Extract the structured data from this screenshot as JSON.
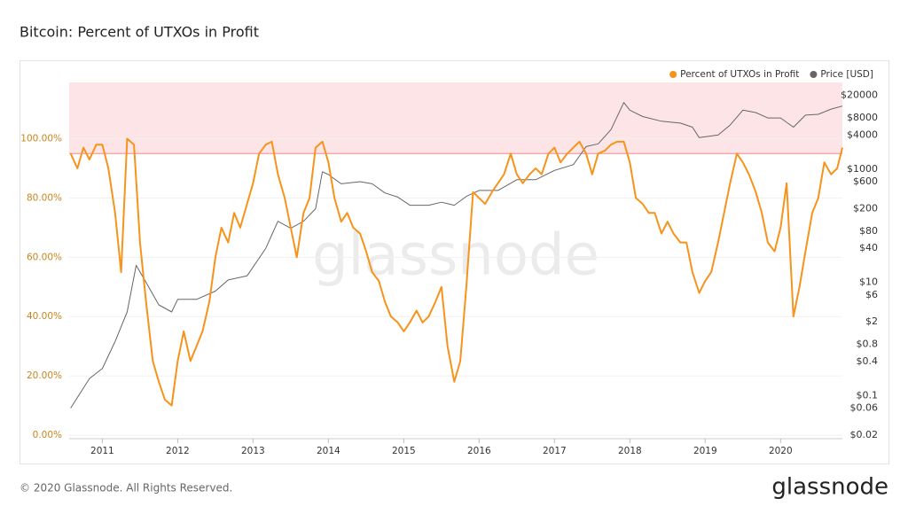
{
  "chart_data": {
    "type": "line",
    "title": "Bitcoin: Percent of UTXOs in Profit",
    "watermark": "glassnode",
    "footer": "© 2020 Glassnode. All Rights Reserved.",
    "brand": "glassnode",
    "xlim": [
      2010.56,
      2020.82
    ],
    "xticks": [
      2011,
      2012,
      2013,
      2014,
      2015,
      2016,
      2017,
      2018,
      2019,
      2020
    ],
    "ylim": [
      0,
      119
    ],
    "yticks": [
      {
        "value": 0,
        "label": "0.00%"
      },
      {
        "value": 20,
        "label": "20.00%"
      },
      {
        "value": 40,
        "label": "40.00%"
      },
      {
        "value": 60,
        "label": "60.00%"
      },
      {
        "value": 80,
        "label": "80.00%"
      },
      {
        "value": 100,
        "label": "100.00%"
      }
    ],
    "y2lim": [
      0.02,
      34000
    ],
    "y2log": true,
    "y2ticks": [
      {
        "value": 0.02,
        "label": "$0.02"
      },
      {
        "value": 0.06,
        "label": "$0.06"
      },
      {
        "value": 0.1,
        "label": "$0.1"
      },
      {
        "value": 0.4,
        "label": "$0.4"
      },
      {
        "value": 0.8,
        "label": "$0.8"
      },
      {
        "value": 2,
        "label": "$2"
      },
      {
        "value": 6,
        "label": "$6"
      },
      {
        "value": 10,
        "label": "$10"
      },
      {
        "value": 40,
        "label": "$40"
      },
      {
        "value": 80,
        "label": "$80"
      },
      {
        "value": 200,
        "label": "$200"
      },
      {
        "value": 600,
        "label": "$600"
      },
      {
        "value": 1000,
        "label": "$1000"
      },
      {
        "value": 4000,
        "label": "$4000"
      },
      {
        "value": 8000,
        "label": "$8000"
      },
      {
        "value": 20000,
        "label": "$20000"
      }
    ],
    "highlight": {
      "from": 95,
      "color": "#fde5e7",
      "line_color": "#f08a8a"
    },
    "grid": true,
    "legend": "top-right",
    "series": [
      {
        "name": "Percent of UTXOs in Profit",
        "color": "#f7931a",
        "axis": "y",
        "x": [
          2010.58,
          2010.67,
          2010.75,
          2010.83,
          2010.92,
          2011.0,
          2011.08,
          2011.17,
          2011.25,
          2011.33,
          2011.42,
          2011.5,
          2011.58,
          2011.67,
          2011.75,
          2011.83,
          2011.92,
          2012.0,
          2012.08,
          2012.17,
          2012.25,
          2012.33,
          2012.42,
          2012.5,
          2012.58,
          2012.67,
          2012.75,
          2012.83,
          2012.92,
          2013.0,
          2013.08,
          2013.17,
          2013.25,
          2013.33,
          2013.42,
          2013.5,
          2013.58,
          2013.67,
          2013.75,
          2013.83,
          2013.92,
          2014.0,
          2014.08,
          2014.17,
          2014.25,
          2014.33,
          2014.42,
          2014.5,
          2014.58,
          2014.67,
          2014.75,
          2014.83,
          2014.92,
          2015.0,
          2015.08,
          2015.17,
          2015.25,
          2015.33,
          2015.42,
          2015.5,
          2015.58,
          2015.67,
          2015.75,
          2015.83,
          2015.92,
          2016.0,
          2016.08,
          2016.17,
          2016.25,
          2016.33,
          2016.42,
          2016.5,
          2016.58,
          2016.67,
          2016.75,
          2016.83,
          2016.92,
          2017.0,
          2017.08,
          2017.17,
          2017.25,
          2017.33,
          2017.42,
          2017.5,
          2017.58,
          2017.67,
          2017.75,
          2017.83,
          2017.92,
          2018.0,
          2018.08,
          2018.17,
          2018.25,
          2018.33,
          2018.42,
          2018.5,
          2018.58,
          2018.67,
          2018.75,
          2018.83,
          2018.92,
          2019.0,
          2019.08,
          2019.17,
          2019.25,
          2019.33,
          2019.42,
          2019.5,
          2019.58,
          2019.67,
          2019.75,
          2019.83,
          2019.92,
          2020.0,
          2020.08,
          2020.17,
          2020.25,
          2020.33,
          2020.42,
          2020.5,
          2020.58,
          2020.67,
          2020.75,
          2020.82
        ],
        "values": [
          95,
          90,
          97,
          93,
          98,
          98,
          90,
          75,
          55,
          100,
          98,
          65,
          45,
          25,
          18,
          12,
          10,
          25,
          35,
          25,
          30,
          35,
          45,
          60,
          70,
          65,
          75,
          70,
          78,
          85,
          95,
          98,
          99,
          88,
          80,
          70,
          60,
          75,
          80,
          97,
          99,
          92,
          80,
          72,
          75,
          70,
          68,
          62,
          55,
          52,
          45,
          40,
          38,
          35,
          38,
          42,
          38,
          40,
          45,
          50,
          30,
          18,
          25,
          50,
          82,
          80,
          78,
          82,
          85,
          88,
          95,
          88,
          85,
          88,
          90,
          88,
          95,
          97,
          92,
          95,
          97,
          99,
          95,
          88,
          95,
          96,
          98,
          99,
          99,
          92,
          80,
          78,
          75,
          75,
          68,
          72,
          68,
          65,
          65,
          55,
          48,
          52,
          55,
          65,
          75,
          85,
          95,
          92,
          88,
          82,
          75,
          65,
          62,
          70,
          85,
          40,
          50,
          62,
          75,
          80,
          92,
          88,
          90,
          97
        ]
      },
      {
        "name": "Price [USD]",
        "color": "#666666",
        "axis": "y2",
        "x": [
          2010.58,
          2010.83,
          2011.0,
          2011.17,
          2011.33,
          2011.45,
          2011.58,
          2011.75,
          2011.92,
          2012.0,
          2012.25,
          2012.5,
          2012.67,
          2012.92,
          2013.17,
          2013.33,
          2013.5,
          2013.67,
          2013.83,
          2013.92,
          2014.0,
          2014.17,
          2014.42,
          2014.58,
          2014.75,
          2014.92,
          2015.08,
          2015.33,
          2015.5,
          2015.67,
          2015.83,
          2016.0,
          2016.25,
          2016.5,
          2016.75,
          2017.0,
          2017.25,
          2017.42,
          2017.58,
          2017.75,
          2017.92,
          2018.0,
          2018.17,
          2018.42,
          2018.67,
          2018.83,
          2018.92,
          2019.17,
          2019.33,
          2019.5,
          2019.67,
          2019.83,
          2020.0,
          2020.17,
          2020.33,
          2020.5,
          2020.67,
          2020.82
        ],
        "values": [
          0.06,
          0.2,
          0.3,
          0.9,
          3,
          20,
          10,
          4,
          3,
          5,
          5,
          7,
          11,
          13,
          40,
          120,
          90,
          120,
          200,
          900,
          800,
          550,
          600,
          550,
          380,
          320,
          230,
          230,
          260,
          230,
          330,
          420,
          420,
          650,
          650,
          950,
          1200,
          2500,
          2800,
          5000,
          15000,
          11000,
          8500,
          7000,
          6500,
          5500,
          3600,
          4000,
          6000,
          11000,
          10000,
          8000,
          8000,
          5500,
          9000,
          9300,
          11500,
          13000
        ]
      }
    ]
  }
}
